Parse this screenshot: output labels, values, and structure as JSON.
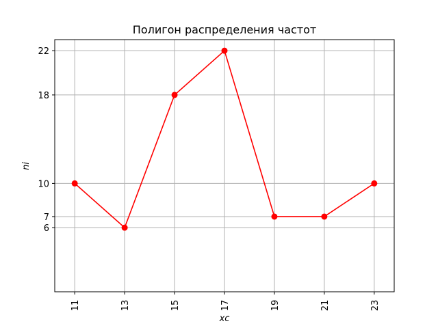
{
  "chart_data": {
    "type": "line",
    "title": "Полигон распределения частот",
    "xlabel": "xc",
    "ylabel": "ni",
    "x": [
      11,
      13,
      15,
      17,
      19,
      21,
      23
    ],
    "series": [
      {
        "values": [
          10,
          6,
          18,
          22,
          7,
          7,
          10
        ],
        "color": "#ff0000",
        "marker": "circle"
      }
    ],
    "xticks": [
      11,
      13,
      15,
      17,
      19,
      21,
      23
    ],
    "yticks": [
      6,
      7,
      10,
      18,
      22
    ],
    "xlim": [
      10.2,
      23.8
    ],
    "ylim": [
      0.2,
      23
    ],
    "grid": true
  }
}
